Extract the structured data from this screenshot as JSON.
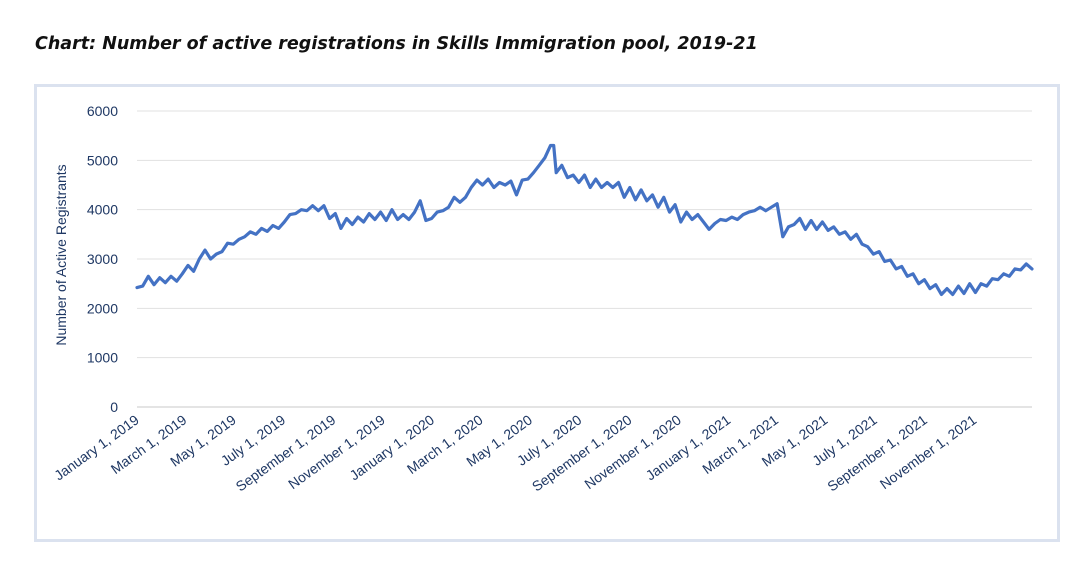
{
  "chart_data": {
    "type": "line",
    "title": "Chart: Number of active registrations in Skills Immigration pool, 2019-21",
    "xlabel": "",
    "ylabel": "Number of Active Registrants",
    "ylim": [
      0,
      6000
    ],
    "yticks": [
      0,
      1000,
      2000,
      3000,
      4000,
      5000,
      6000
    ],
    "xticks": [
      "January 1, 2019",
      "March 1, 2019",
      "May 1, 2019",
      "July 1, 2019",
      "September 1, 2019",
      "November 1, 2019",
      "January 1, 2020",
      "March 1, 2020",
      "May 1, 2020",
      "July 1, 2020",
      "September 1, 2020",
      "November 1, 2020",
      "January 1, 2021",
      "March 1, 2021",
      "May 1, 2021",
      "July 1, 2021",
      "September 1, 2021",
      "November 1, 2021"
    ],
    "grid": true,
    "color": "#4472c4",
    "series": [
      {
        "name": "",
        "points": [
          [
            "2019-01-01",
            2420
          ],
          [
            "2019-01-08",
            2450
          ],
          [
            "2019-01-15",
            2650
          ],
          [
            "2019-01-22",
            2480
          ],
          [
            "2019-01-29",
            2620
          ],
          [
            "2019-02-05",
            2520
          ],
          [
            "2019-02-12",
            2650
          ],
          [
            "2019-02-19",
            2550
          ],
          [
            "2019-02-26",
            2700
          ],
          [
            "2019-03-05",
            2870
          ],
          [
            "2019-03-12",
            2750
          ],
          [
            "2019-03-19",
            3000
          ],
          [
            "2019-03-26",
            3180
          ],
          [
            "2019-04-02",
            3000
          ],
          [
            "2019-04-09",
            3100
          ],
          [
            "2019-04-16",
            3150
          ],
          [
            "2019-04-23",
            3320
          ],
          [
            "2019-04-30",
            3300
          ],
          [
            "2019-05-07",
            3400
          ],
          [
            "2019-05-14",
            3450
          ],
          [
            "2019-05-21",
            3550
          ],
          [
            "2019-05-28",
            3500
          ],
          [
            "2019-06-04",
            3620
          ],
          [
            "2019-06-11",
            3560
          ],
          [
            "2019-06-18",
            3680
          ],
          [
            "2019-06-25",
            3620
          ],
          [
            "2019-07-02",
            3750
          ],
          [
            "2019-07-09",
            3900
          ],
          [
            "2019-07-16",
            3920
          ],
          [
            "2019-07-23",
            4000
          ],
          [
            "2019-07-30",
            3980
          ],
          [
            "2019-08-06",
            4080
          ],
          [
            "2019-08-13",
            3980
          ],
          [
            "2019-08-20",
            4080
          ],
          [
            "2019-08-27",
            3820
          ],
          [
            "2019-09-03",
            3920
          ],
          [
            "2019-09-10",
            3620
          ],
          [
            "2019-09-17",
            3820
          ],
          [
            "2019-09-24",
            3700
          ],
          [
            "2019-10-01",
            3850
          ],
          [
            "2019-10-08",
            3750
          ],
          [
            "2019-10-15",
            3920
          ],
          [
            "2019-10-22",
            3800
          ],
          [
            "2019-10-29",
            3950
          ],
          [
            "2019-11-05",
            3780
          ],
          [
            "2019-11-12",
            4000
          ],
          [
            "2019-11-19",
            3800
          ],
          [
            "2019-11-26",
            3900
          ],
          [
            "2019-12-03",
            3800
          ],
          [
            "2019-12-10",
            3950
          ],
          [
            "2019-12-17",
            4180
          ],
          [
            "2019-12-24",
            3780
          ],
          [
            "2019-12-31",
            3820
          ],
          [
            "2020-01-07",
            3950
          ],
          [
            "2020-01-14",
            3980
          ],
          [
            "2020-01-21",
            4050
          ],
          [
            "2020-01-28",
            4250
          ],
          [
            "2020-02-04",
            4150
          ],
          [
            "2020-02-11",
            4250
          ],
          [
            "2020-02-18",
            4450
          ],
          [
            "2020-02-25",
            4600
          ],
          [
            "2020-03-03",
            4500
          ],
          [
            "2020-03-10",
            4620
          ],
          [
            "2020-03-17",
            4450
          ],
          [
            "2020-03-24",
            4550
          ],
          [
            "2020-03-31",
            4500
          ],
          [
            "2020-04-07",
            4580
          ],
          [
            "2020-04-14",
            4300
          ],
          [
            "2020-04-21",
            4600
          ],
          [
            "2020-04-28",
            4620
          ],
          [
            "2020-05-05",
            4750
          ],
          [
            "2020-05-12",
            4900
          ],
          [
            "2020-05-19",
            5050
          ],
          [
            "2020-05-26",
            5300
          ],
          [
            "2020-05-30",
            5300
          ],
          [
            "2020-06-02",
            4750
          ],
          [
            "2020-06-09",
            4900
          ],
          [
            "2020-06-16",
            4650
          ],
          [
            "2020-06-23",
            4700
          ],
          [
            "2020-06-30",
            4550
          ],
          [
            "2020-07-07",
            4700
          ],
          [
            "2020-07-14",
            4450
          ],
          [
            "2020-07-21",
            4620
          ],
          [
            "2020-07-28",
            4450
          ],
          [
            "2020-08-04",
            4550
          ],
          [
            "2020-08-11",
            4450
          ],
          [
            "2020-08-18",
            4550
          ],
          [
            "2020-08-25",
            4250
          ],
          [
            "2020-09-01",
            4450
          ],
          [
            "2020-09-08",
            4200
          ],
          [
            "2020-09-15",
            4400
          ],
          [
            "2020-09-22",
            4180
          ],
          [
            "2020-09-29",
            4300
          ],
          [
            "2020-10-06",
            4050
          ],
          [
            "2020-10-13",
            4250
          ],
          [
            "2020-10-20",
            3950
          ],
          [
            "2020-10-27",
            4100
          ],
          [
            "2020-11-03",
            3750
          ],
          [
            "2020-11-10",
            3950
          ],
          [
            "2020-11-17",
            3800
          ],
          [
            "2020-11-24",
            3900
          ],
          [
            "2020-12-01",
            3750
          ],
          [
            "2020-12-08",
            3600
          ],
          [
            "2020-12-15",
            3720
          ],
          [
            "2020-12-22",
            3800
          ],
          [
            "2020-12-29",
            3780
          ],
          [
            "2021-01-05",
            3850
          ],
          [
            "2021-01-12",
            3800
          ],
          [
            "2021-01-19",
            3900
          ],
          [
            "2021-01-26",
            3950
          ],
          [
            "2021-02-02",
            3980
          ],
          [
            "2021-02-09",
            4050
          ],
          [
            "2021-02-16",
            3980
          ],
          [
            "2021-02-23",
            4050
          ],
          [
            "2021-03-02",
            4120
          ],
          [
            "2021-03-09",
            3450
          ],
          [
            "2021-03-16",
            3650
          ],
          [
            "2021-03-23",
            3700
          ],
          [
            "2021-03-30",
            3820
          ],
          [
            "2021-04-06",
            3600
          ],
          [
            "2021-04-13",
            3780
          ],
          [
            "2021-04-20",
            3600
          ],
          [
            "2021-04-27",
            3750
          ],
          [
            "2021-05-04",
            3580
          ],
          [
            "2021-05-11",
            3650
          ],
          [
            "2021-05-18",
            3500
          ],
          [
            "2021-05-25",
            3550
          ],
          [
            "2021-06-01",
            3400
          ],
          [
            "2021-06-08",
            3500
          ],
          [
            "2021-06-15",
            3300
          ],
          [
            "2021-06-22",
            3250
          ],
          [
            "2021-06-29",
            3100
          ],
          [
            "2021-07-06",
            3150
          ],
          [
            "2021-07-13",
            2950
          ],
          [
            "2021-07-20",
            2980
          ],
          [
            "2021-07-27",
            2800
          ],
          [
            "2021-08-03",
            2850
          ],
          [
            "2021-08-10",
            2650
          ],
          [
            "2021-08-17",
            2700
          ],
          [
            "2021-08-24",
            2500
          ],
          [
            "2021-08-31",
            2580
          ],
          [
            "2021-09-07",
            2400
          ],
          [
            "2021-09-14",
            2480
          ],
          [
            "2021-09-21",
            2280
          ],
          [
            "2021-09-28",
            2400
          ],
          [
            "2021-10-05",
            2280
          ],
          [
            "2021-10-12",
            2450
          ],
          [
            "2021-10-19",
            2300
          ],
          [
            "2021-10-26",
            2500
          ],
          [
            "2021-11-02",
            2320
          ],
          [
            "2021-11-09",
            2500
          ],
          [
            "2021-11-16",
            2450
          ],
          [
            "2021-11-23",
            2600
          ],
          [
            "2021-11-30",
            2580
          ],
          [
            "2021-12-07",
            2700
          ],
          [
            "2021-12-14",
            2650
          ],
          [
            "2021-12-21",
            2800
          ],
          [
            "2021-12-28",
            2780
          ],
          [
            "2022-01-04",
            2900
          ],
          [
            "2022-01-11",
            2800
          ]
        ]
      }
    ]
  }
}
